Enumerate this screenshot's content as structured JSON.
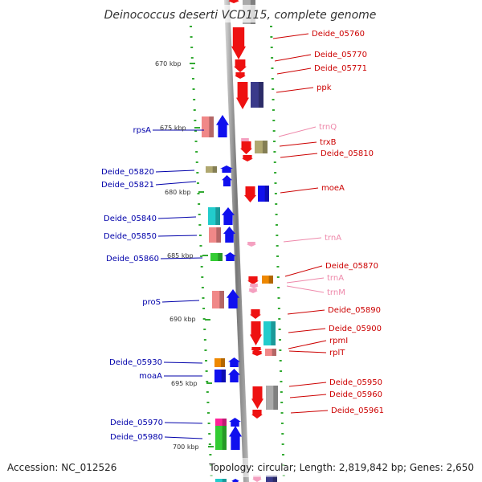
{
  "title": "Deinococcus deserti VCD115, complete genome",
  "accession": "Accession: NC_012526",
  "topology": "Topology: circular; Length: 2,819,842 bp; Genes: 2,650",
  "colors": {
    "red": "#ee1111",
    "pink": "#f08888",
    "blue": "#1010ee",
    "navy": "#3a3a8a",
    "olive": "#b0a870",
    "cyan": "#22cccc",
    "green": "#33cc33",
    "orange": "#ee8800",
    "magenta": "#ff2299",
    "gray": "#aaaaaa",
    "lightpink": "#f4a0c0",
    "labelRed": "#cc0000",
    "labelBlue": "#0000aa",
    "labelPink": "#ee88aa",
    "tick": "#33aa33"
  },
  "scale": {
    "ticks": [
      {
        "label": "670 kbp"
      },
      {
        "label": "675 kbp"
      },
      {
        "label": "680 kbp"
      },
      {
        "label": "685 kbp"
      },
      {
        "label": "690 kbp"
      },
      {
        "label": "695 kbp"
      },
      {
        "label": "700 kbp"
      }
    ]
  },
  "labels": {
    "right": [
      {
        "text": "Deide_05760",
        "color": "red"
      },
      {
        "text": "Deide_05770",
        "color": "red"
      },
      {
        "text": "Deide_05771",
        "color": "red"
      },
      {
        "text": "ppk",
        "color": "red"
      },
      {
        "text": "trnQ",
        "color": "pink"
      },
      {
        "text": "trxB",
        "color": "red"
      },
      {
        "text": "Deide_05810",
        "color": "red"
      },
      {
        "text": "moeA",
        "color": "red"
      },
      {
        "text": "trnA",
        "color": "pink"
      },
      {
        "text": "Deide_05870",
        "color": "red"
      },
      {
        "text": "trnA",
        "color": "pink"
      },
      {
        "text": "trnM",
        "color": "pink"
      },
      {
        "text": "Deide_05890",
        "color": "red"
      },
      {
        "text": "Deide_05900",
        "color": "red"
      },
      {
        "text": "rpmI",
        "color": "red"
      },
      {
        "text": "rplT",
        "color": "red"
      },
      {
        "text": "Deide_05950",
        "color": "red"
      },
      {
        "text": "Deide_05960",
        "color": "red"
      },
      {
        "text": "Deide_05961",
        "color": "red"
      }
    ],
    "left": [
      {
        "text": "rpsA"
      },
      {
        "text": "Deide_05820"
      },
      {
        "text": "Deide_05821"
      },
      {
        "text": "Deide_05840"
      },
      {
        "text": "Deide_05850"
      },
      {
        "text": "Deide_05860"
      },
      {
        "text": "proS"
      },
      {
        "text": "Deide_05930"
      },
      {
        "text": "moaA"
      },
      {
        "text": "Deide_05970"
      },
      {
        "text": "Deide_05980"
      }
    ]
  }
}
